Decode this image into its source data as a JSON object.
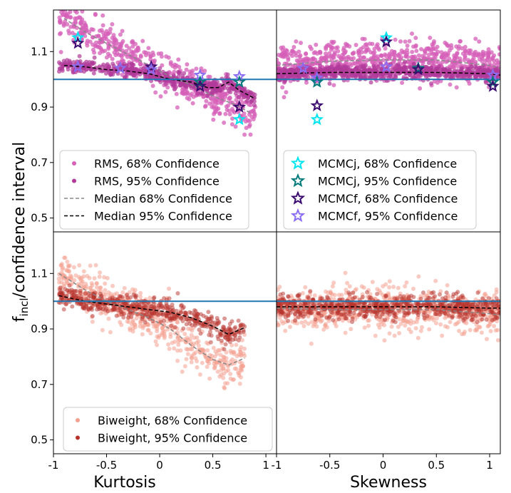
{
  "chart_data": {
    "type": "scatter",
    "ylabel": "f_incl/confidence interval",
    "ylabel_parts": {
      "main": "f",
      "sub": "incl",
      "rest": "/confidence interval"
    },
    "xlabel_left": "Kurtosis",
    "xlabel_right": "Skewness",
    "xlim_kurtosis": [
      -1,
      1.1
    ],
    "xlim_skewness": [
      -1,
      1.1
    ],
    "ylim": [
      0.45,
      1.25
    ],
    "xticks": [
      {
        "value": -1,
        "label": "-1"
      },
      {
        "value": -0.5,
        "label": "-0.5"
      },
      {
        "value": 0,
        "label": "0"
      },
      {
        "value": 0.5,
        "label": "0.5"
      },
      {
        "value": 1,
        "label": "1"
      }
    ],
    "yticks": [
      {
        "value": 0.5,
        "label": "0.5"
      },
      {
        "value": 0.7,
        "label": "0.7"
      },
      {
        "value": 0.9,
        "label": "0.9"
      },
      {
        "value": 1.1,
        "label": "1.1"
      }
    ],
    "reference_line": {
      "y": 1.0,
      "color": "#1f77b4"
    },
    "colors": {
      "rms68": "#d65fb8",
      "rms95": "#b03a9a",
      "bw68": "#f4a090",
      "bw95": "#b8332d",
      "mcmcj68": "#00e5f0",
      "mcmcj95": "#007a7a",
      "mcmcf68": "#3b0a6e",
      "mcmcf95": "#8a6df0",
      "median68": "#888888",
      "median95": "#000000"
    },
    "panels": [
      {
        "id": "rms-kurtosis",
        "xaxis": "kurtosis",
        "median68": {
          "x": [
            -0.9,
            -0.7,
            -0.5,
            -0.3,
            -0.1,
            0.1,
            0.3,
            0.5,
            0.7,
            0.85
          ],
          "y": [
            1.22,
            1.17,
            1.13,
            1.09,
            1.05,
            1.01,
            0.98,
            0.94,
            0.91,
            0.88
          ]
        },
        "median95": {
          "x": [
            -0.9,
            -0.7,
            -0.5,
            -0.3,
            -0.1,
            0.1,
            0.3,
            0.45,
            0.55,
            0.65,
            0.75,
            0.9
          ],
          "y": [
            1.05,
            1.045,
            1.035,
            1.03,
            1.02,
            1.0,
            0.99,
            0.97,
            0.97,
            0.99,
            0.96,
            0.93
          ]
        },
        "stars": [
          {
            "series": "mcmcj68",
            "x": -0.77,
            "y": 1.15
          },
          {
            "series": "mcmcf68",
            "x": -0.77,
            "y": 1.13
          },
          {
            "series": "mcmcf95",
            "x": -0.77,
            "y": 1.045
          },
          {
            "series": "mcmcf95",
            "x": -0.37,
            "y": 1.04
          },
          {
            "series": "mcmcf68",
            "x": -0.08,
            "y": 1.045
          },
          {
            "series": "mcmcf95",
            "x": -0.08,
            "y": 1.035
          },
          {
            "series": "mcmcf95",
            "x": 0.38,
            "y": 1.015
          },
          {
            "series": "mcmcj95",
            "x": 0.38,
            "y": 0.99
          },
          {
            "series": "mcmcf68",
            "x": 0.38,
            "y": 0.975
          },
          {
            "series": "mcmcf95",
            "x": 0.75,
            "y": 1.01
          },
          {
            "series": "mcmcj95",
            "x": 0.75,
            "y": 0.99
          },
          {
            "series": "mcmcf68",
            "x": 0.75,
            "y": 0.9
          },
          {
            "series": "mcmcj68",
            "x": 0.75,
            "y": 0.855
          }
        ]
      },
      {
        "id": "rms-skewness",
        "xaxis": "skewness",
        "median68": {
          "x": [
            -1,
            -0.5,
            0,
            0.5,
            1,
            1.1
          ],
          "y": [
            1.05,
            1.065,
            1.07,
            1.07,
            1.05,
            1.04
          ]
        },
        "median95": {
          "x": [
            -1,
            -0.5,
            0,
            0.5,
            1,
            1.1
          ],
          "y": [
            1.02,
            1.025,
            1.025,
            1.025,
            1.02,
            1.015
          ]
        },
        "stars": [
          {
            "series": "mcmcf95",
            "x": -0.75,
            "y": 1.04
          },
          {
            "series": "mcmcf95",
            "x": -0.62,
            "y": 1.005
          },
          {
            "series": "mcmcj95",
            "x": -0.62,
            "y": 0.99
          },
          {
            "series": "mcmcf68",
            "x": -0.62,
            "y": 0.905
          },
          {
            "series": "mcmcj68",
            "x": -0.62,
            "y": 0.855
          },
          {
            "series": "mcmcj68",
            "x": 0.03,
            "y": 1.15
          },
          {
            "series": "mcmcf68",
            "x": 0.03,
            "y": 1.135
          },
          {
            "series": "mcmcf95",
            "x": 0.03,
            "y": 1.045
          },
          {
            "series": "mcmcj95",
            "x": 0.33,
            "y": 1.04
          },
          {
            "series": "mcmcf68",
            "x": 0.33,
            "y": 1.035
          },
          {
            "series": "mcmcf95",
            "x": 1.03,
            "y": 1.015
          },
          {
            "series": "mcmcj95",
            "x": 1.03,
            "y": 0.99
          },
          {
            "series": "mcmcf68",
            "x": 1.03,
            "y": 0.975
          }
        ]
      },
      {
        "id": "bw-kurtosis",
        "xaxis": "kurtosis",
        "median68": {
          "x": [
            -0.95,
            -0.7,
            -0.5,
            -0.3,
            -0.1,
            0.1,
            0.3,
            0.5,
            0.65,
            0.8
          ],
          "y": [
            1.1,
            1.04,
            1.0,
            0.97,
            0.94,
            0.9,
            0.84,
            0.79,
            0.77,
            0.795
          ]
        },
        "median95": {
          "x": [
            -0.95,
            -0.7,
            -0.5,
            -0.3,
            -0.1,
            0.1,
            0.3,
            0.5,
            0.65,
            0.8
          ],
          "y": [
            1.02,
            1.0,
            0.99,
            0.98,
            0.97,
            0.96,
            0.94,
            0.91,
            0.88,
            0.905
          ]
        },
        "stars": []
      },
      {
        "id": "bw-skewness",
        "xaxis": "skewness",
        "median68": {
          "x": [
            -1,
            -0.5,
            0,
            0.5,
            1,
            1.1
          ],
          "y": [
            0.975,
            0.97,
            0.97,
            0.97,
            0.955,
            0.95
          ]
        },
        "median95": {
          "x": [
            -1,
            -0.5,
            0,
            0.5,
            1,
            1.1
          ],
          "y": [
            0.98,
            0.98,
            0.98,
            0.98,
            0.975,
            0.975
          ]
        },
        "stars": []
      }
    ],
    "legends": {
      "top_left": [
        {
          "kind": "dot",
          "series": "rms68",
          "label": "RMS, 68% Confidence"
        },
        {
          "kind": "dot",
          "series": "rms95",
          "label": "RMS, 95% Confidence"
        },
        {
          "kind": "line",
          "series": "median68",
          "label": "Median 68% Confidence"
        },
        {
          "kind": "line",
          "series": "median95",
          "label": "Median 95% Confidence"
        }
      ],
      "top_right": [
        {
          "kind": "star",
          "series": "mcmcj68",
          "label": "MCMCj, 68% Confidence"
        },
        {
          "kind": "star",
          "series": "mcmcj95",
          "label": "MCMCj, 95% Confidence"
        },
        {
          "kind": "star",
          "series": "mcmcf68",
          "label": "MCMCf, 68% Confidence"
        },
        {
          "kind": "star",
          "series": "mcmcf95",
          "label": "MCMCf, 95% Confidence"
        }
      ],
      "bottom_left": [
        {
          "kind": "dot",
          "series": "bw68",
          "label": "Biweight, 68% Confidence"
        },
        {
          "kind": "dot",
          "series": "bw95",
          "label": "Biweight, 95% Confidence"
        }
      ]
    }
  }
}
